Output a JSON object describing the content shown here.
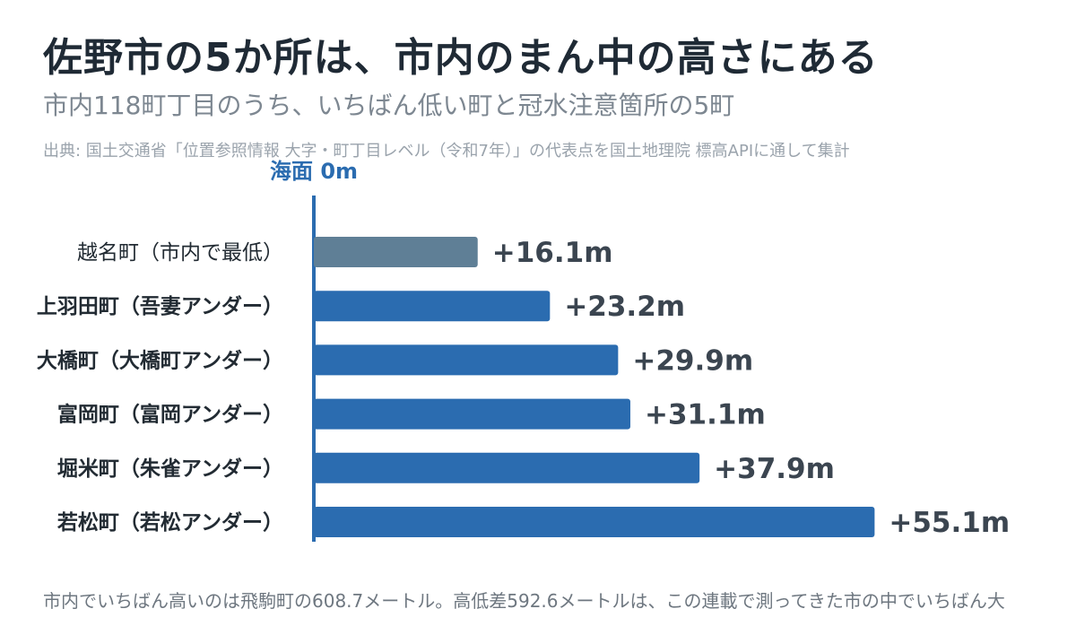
{
  "header": {
    "title": "佐野市の5か所は、市内のまん中の高さにある",
    "subtitle": "市内118町丁目のうち、いちばん低い町と冠水注意箇所の5町",
    "source": "出典: 国土交通省「位置参照情報 大字・町丁目レベル（令和7年）」の代表点を国土地理院 標高APIに通して集計"
  },
  "footnote": "市内でいちばん高いのは飛駒町の608.7メートル。高低差592.6メートルは、この連載で測ってきた市の中でいちばん大",
  "chart_data": {
    "type": "bar",
    "orientation": "horizontal",
    "axis_label": "海面 0m",
    "xlim": [
      0,
      58
    ],
    "grid": false,
    "categories": [
      "越名町（市内で最低）",
      "上羽田町（吾妻アンダー）",
      "大橋町（大橋町アンダー）",
      "富岡町（富岡アンダー）",
      "堀米町（朱雀アンダー）",
      "若松町（若松アンダー）"
    ],
    "values": [
      16.1,
      23.2,
      29.9,
      31.1,
      37.9,
      55.1
    ],
    "value_labels": [
      "+16.1m",
      "+23.2m",
      "+29.9m",
      "+31.1m",
      "+37.9m",
      "+55.1m"
    ],
    "bold_labels": [
      false,
      true,
      true,
      true,
      true,
      true
    ],
    "colors": [
      "#5f7f96",
      "#2b6cb0",
      "#2b6cb0",
      "#2b6cb0",
      "#2b6cb0",
      "#2b6cb0"
    ],
    "axis_color": "#2b6cb0"
  }
}
